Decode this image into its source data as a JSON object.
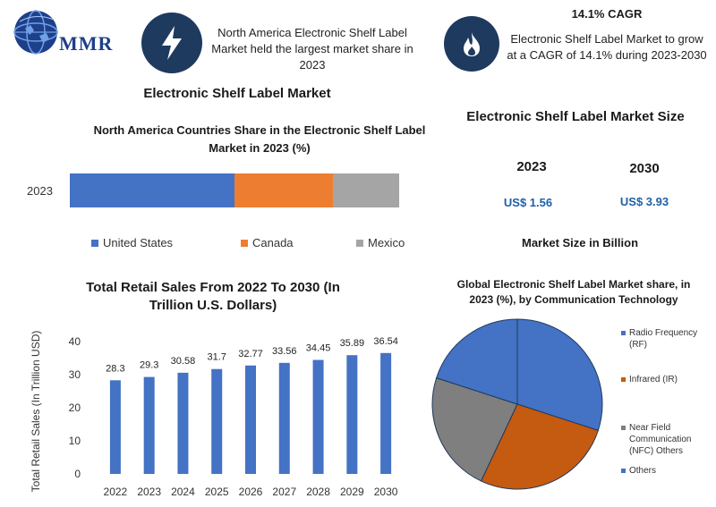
{
  "logo": {
    "text": "MMR"
  },
  "highlights": {
    "left_text": "North America Electronic Shelf Label Market held the largest market share in 2023",
    "cagr_title": "14.1% CAGR",
    "cagr_text": "Electronic Shelf Label Market to grow at a CAGR of 14.1% during 2023-2030"
  },
  "main_title": "Electronic Shelf Label Market",
  "market_size": {
    "title": "Electronic Shelf Label Market Size",
    "years": [
      "2023",
      "2030"
    ],
    "values": [
      "US$ 1.56",
      "US$ 3.93"
    ],
    "note": "Market Size in Billion"
  },
  "colors": {
    "dark_navy": "#1f3a5f",
    "blue": "#4472c4",
    "orange": "#ed7d31",
    "gray": "#a5a5a5",
    "pie_orange": "#c55a11",
    "pie_gray": "#7f7f7f",
    "usd_blue": "#1f5fa8"
  },
  "icons": [
    "lightning-bolt-icon",
    "flame-icon",
    "globe-logo-icon"
  ],
  "chart_data": [
    {
      "type": "bar",
      "stacked": true,
      "orientation": "horizontal",
      "title": "North America Countries Share in the Electronic Shelf Label Market in 2023 (%)",
      "categories": [
        "2023"
      ],
      "series": [
        {
          "name": "United States",
          "values": [
            50
          ],
          "color": "#4472c4"
        },
        {
          "name": "Canada",
          "values": [
            30
          ],
          "color": "#ed7d31"
        },
        {
          "name": "Mexico",
          "values": [
            20
          ],
          "color": "#a5a5a5"
        }
      ],
      "xlim": [
        0,
        100
      ],
      "legend": "bottom"
    },
    {
      "type": "bar",
      "title": "Total Retail Sales From 2022 To 2030 (In Trillion U.S. Dollars)",
      "categories": [
        "2022",
        "2023",
        "2024",
        "2025",
        "2026",
        "2027",
        "2028",
        "2029",
        "2030"
      ],
      "values": [
        28.3,
        29.3,
        30.58,
        31.7,
        32.77,
        33.56,
        34.45,
        35.89,
        36.54
      ],
      "value_labels": [
        "28.3",
        "29.3",
        "30.58",
        "31.7",
        "32.77",
        "33.56",
        "34.45",
        "35.89",
        "36.54"
      ],
      "ylabel": "Total Retail Sales (In Trillion USD)",
      "ylim": [
        0,
        40
      ],
      "yticks": [
        "0",
        "10",
        "20",
        "30",
        "40"
      ],
      "color": "#4472c4",
      "grid": false
    },
    {
      "type": "pie",
      "title": "Global Electronic Shelf Label Market share, in 2023 (%), by Communication Technology",
      "labels": [
        "Radio Frequency (RF)",
        "Infrared (IR)",
        "Near Field Communication (NFC) Others",
        "Others"
      ],
      "values": [
        30,
        27,
        23,
        20
      ],
      "colors": [
        "#4472c4",
        "#c55a11",
        "#7f7f7f",
        "#4472c4"
      ],
      "legend": "right"
    }
  ]
}
